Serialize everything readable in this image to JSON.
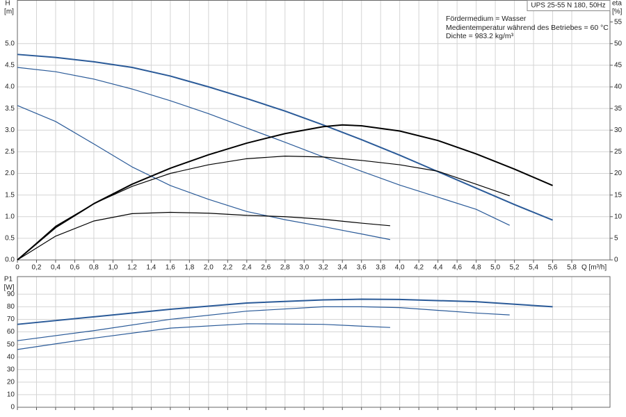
{
  "chart_data": [
    {
      "type": "line",
      "title": "UPS 25-55 N 180, 50Hz",
      "y_label": "H",
      "y_unit": "[m]",
      "y2_label": "eta",
      "y2_unit": "[%]",
      "x_label": "Q [m³/h]",
      "annotations": [
        "Fördermedium = Wasser",
        "Medientemperatur während des Betriebes = 60 °C",
        "Dichte = 983.2 kg/m³"
      ],
      "xlim": [
        0,
        6.2
      ],
      "xticks": [
        0,
        {
          "value": 0.2,
          "label": "0,2"
        },
        {
          "value": 0.4,
          "label": "0,4"
        },
        {
          "value": 0.6,
          "label": "0,6"
        },
        {
          "value": 0.8,
          "label": "0,8"
        },
        {
          "value": 1.0,
          "label": "1,0"
        },
        {
          "value": 1.2,
          "label": "1,2"
        },
        {
          "value": 1.4,
          "label": "1,4"
        },
        {
          "value": 1.6,
          "label": "1,6"
        },
        {
          "value": 1.8,
          "label": "1,8"
        },
        {
          "value": 2.0,
          "label": "2,0"
        },
        {
          "value": 2.2,
          "label": "2,2"
        },
        {
          "value": 2.4,
          "label": "2,4"
        },
        {
          "value": 2.6,
          "label": "2,6"
        },
        {
          "value": 2.8,
          "label": "2,8"
        },
        {
          "value": 3.0,
          "label": "3,0"
        },
        {
          "value": 3.2,
          "label": "3,2"
        },
        {
          "value": 3.4,
          "label": "3,4"
        },
        {
          "value": 3.6,
          "label": "3,6"
        },
        {
          "value": 3.8,
          "label": "3,8"
        },
        {
          "value": 4.0,
          "label": "4,0"
        },
        {
          "value": 4.2,
          "label": "4,2"
        },
        {
          "value": 4.4,
          "label": "4,4"
        },
        {
          "value": 4.6,
          "label": "4,6"
        },
        {
          "value": 4.8,
          "label": "4,8"
        },
        {
          "value": 5.0,
          "label": "5,0"
        },
        {
          "value": 5.2,
          "label": "5,2"
        },
        {
          "value": 5.4,
          "label": "5,4"
        },
        {
          "value": 5.6,
          "label": "5,6"
        },
        {
          "value": 5.8,
          "label": "5,8"
        }
      ],
      "ylim": [
        0,
        6
      ],
      "yticks": [
        {
          "value": 0,
          "label": "0.0"
        },
        0.5,
        {
          "value": 1,
          "label": "1.0"
        },
        1.5,
        {
          "value": 2,
          "label": "2.0"
        },
        2.5,
        {
          "value": 3,
          "label": "3.0"
        },
        3.5,
        {
          "value": 4,
          "label": "4.0"
        },
        4.5,
        {
          "value": 5,
          "label": "5.0"
        }
      ],
      "y2lim": [
        0,
        60
      ],
      "y2ticks": [
        0,
        5,
        10,
        15,
        20,
        25,
        30,
        35,
        40,
        45,
        50,
        55
      ],
      "grid": true,
      "series": [
        {
          "color": "#2a5a98",
          "line_width": 2,
          "x": [
            0,
            0.4,
            0.8,
            1.2,
            1.6,
            2.0,
            2.4,
            2.8,
            3.2,
            3.6,
            4.0,
            4.4,
            4.8,
            5.2,
            5.6
          ],
          "values": [
            4.75,
            4.68,
            4.58,
            4.45,
            4.25,
            4.0,
            3.73,
            3.44,
            3.12,
            2.78,
            2.42,
            2.04,
            1.66,
            1.28,
            0.92
          ]
        },
        {
          "color": "#2a5a98",
          "line_width": 1.2,
          "x": [
            0,
            0.4,
            0.8,
            1.2,
            1.6,
            2.0,
            2.4,
            2.8,
            3.2,
            3.6,
            4.0,
            4.4,
            4.8,
            5.15
          ],
          "values": [
            4.45,
            4.35,
            4.18,
            3.95,
            3.68,
            3.38,
            3.05,
            2.72,
            2.38,
            2.05,
            1.73,
            1.45,
            1.17,
            0.8
          ]
        },
        {
          "color": "#2a5a98",
          "line_width": 1.2,
          "x": [
            0,
            0.4,
            0.8,
            1.2,
            1.6,
            2.0,
            2.4,
            2.8,
            3.2,
            3.6,
            3.9
          ],
          "values": [
            3.57,
            3.2,
            2.68,
            2.15,
            1.72,
            1.4,
            1.12,
            0.93,
            0.77,
            0.6,
            0.47
          ]
        },
        {
          "color": "#000000",
          "line_width": 2,
          "axis": "y2",
          "x": [
            0,
            0.4,
            0.8,
            1.2,
            1.6,
            2.0,
            2.4,
            2.8,
            3.2,
            3.4,
            3.6,
            4.0,
            4.4,
            4.8,
            5.2,
            5.6
          ],
          "values": [
            0,
            7.5,
            13,
            17.5,
            21.2,
            24.3,
            27,
            29.2,
            30.8,
            31.2,
            31,
            29.8,
            27.6,
            24.5,
            21,
            17.2
          ]
        },
        {
          "color": "#000000",
          "line_width": 1.2,
          "axis": "y2",
          "x": [
            0,
            0.4,
            0.8,
            1.2,
            1.6,
            2.0,
            2.4,
            2.8,
            3.2,
            3.6,
            4.0,
            4.4,
            4.8,
            5.15
          ],
          "values": [
            0,
            7.8,
            13,
            17,
            20,
            22,
            23.4,
            24,
            23.8,
            23,
            22,
            20.5,
            17.5,
            14.8
          ]
        },
        {
          "color": "#000000",
          "line_width": 1.2,
          "axis": "y2",
          "x": [
            0,
            0.4,
            0.8,
            1.2,
            1.6,
            2.0,
            2.4,
            2.8,
            3.2,
            3.6,
            3.9
          ],
          "values": [
            0,
            5.5,
            9,
            10.7,
            11,
            10.8,
            10.3,
            10,
            9.4,
            8.5,
            7.9
          ]
        }
      ]
    },
    {
      "type": "line",
      "y_label": "P1",
      "y_unit": "[W]",
      "xlim": [
        0,
        6.2
      ],
      "xticks": [
        0,
        0.2,
        0.4,
        0.6,
        0.8,
        1.0,
        1.2,
        1.4,
        1.6,
        1.8,
        2.0,
        2.2,
        2.4,
        2.6,
        2.8,
        3.0,
        3.2,
        3.4,
        3.6,
        3.8,
        4.0,
        4.2,
        4.4,
        4.6,
        4.8,
        5.0,
        5.2,
        5.4,
        5.6,
        5.8
      ],
      "ylim": [
        0,
        104
      ],
      "yticks": [
        0,
        10,
        20,
        30,
        40,
        50,
        60,
        70,
        80,
        90
      ],
      "grid": true,
      "series": [
        {
          "color": "#2a5a98",
          "line_width": 2,
          "x": [
            0,
            0.8,
            1.6,
            2.4,
            3.2,
            3.6,
            4.0,
            4.8,
            5.6
          ],
          "values": [
            66,
            72,
            78,
            83,
            85.5,
            86,
            85.8,
            84,
            80
          ]
        },
        {
          "color": "#2a5a98",
          "line_width": 1.2,
          "x": [
            0,
            0.8,
            1.6,
            2.4,
            3.2,
            3.6,
            4.0,
            4.8,
            5.15
          ],
          "values": [
            53,
            61,
            70,
            76.5,
            80,
            80,
            79.3,
            75,
            73.5
          ]
        },
        {
          "color": "#2a5a98",
          "line_width": 1.2,
          "x": [
            0,
            0.8,
            1.6,
            2.4,
            3.2,
            3.9
          ],
          "values": [
            46,
            55,
            63,
            66.5,
            66,
            63.5
          ]
        }
      ]
    }
  ]
}
